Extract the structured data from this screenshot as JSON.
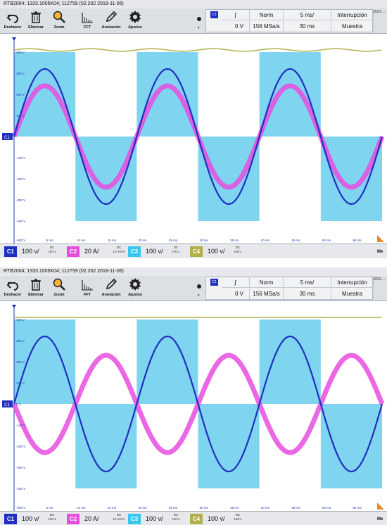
{
  "panels": [
    {
      "title": "RTB2004; 1333.1005K04; 112759 (02.202 2018-11-06)",
      "toolbar": [
        {
          "label": "Deshacer",
          "icon": "undo-icon"
        },
        {
          "label": "Eliminar",
          "icon": "trash-icon"
        },
        {
          "label": "Zoom",
          "icon": "zoom-icon"
        },
        {
          "label": "FFT",
          "icon": "fft-icon"
        },
        {
          "label": "Anotación",
          "icon": "pencil-icon"
        },
        {
          "label": "Ajustes",
          "icon": "gear-icon"
        }
      ],
      "settings": {
        "channel": "C1",
        "edge": "ʃ",
        "mode": "Norm",
        "time_scale": "5 ms/",
        "trigger_type": "Interrupción",
        "level": "0 V",
        "sample_rate": "156 MSa/s",
        "record_length": "30 ms",
        "acquisition": "Muestra",
        "date": "2023-..."
      },
      "channels": [
        {
          "id": "C1",
          "scale": "100 v/",
          "coupling": "DC",
          "probe": "100:1",
          "extra": "",
          "color": "#1f2fbf"
        },
        {
          "id": "C2",
          "scale": "20 A/",
          "coupling": "DC",
          "probe": "",
          "extra": "10 mV/A",
          "color": "#e84de0"
        },
        {
          "id": "C3",
          "scale": "100 v/",
          "coupling": "DC",
          "probe": "100:1",
          "extra": "",
          "color": "#39c6ee"
        },
        {
          "id": "C4",
          "scale": "100 v/",
          "coupling": "DC",
          "probe": "100:1",
          "extra": "",
          "color": "#b3b04a"
        }
      ],
      "me_label": "Me",
      "y_labels": [
        "400 V",
        "300 V",
        "200 V",
        "100 V",
        "-100 V",
        "-200 V",
        "-300 V",
        "-400 V",
        "-500 V"
      ],
      "x_labels": [
        "5 ms",
        "10 ms",
        "15 ms",
        "20 ms",
        "25 ms",
        "30 ms",
        "35 ms",
        "40 ms",
        "45 ms",
        "50 ms",
        "55 ms"
      ],
      "ch1_marker": "C1",
      "trace_colors": {
        "c1": "#1f2fbf",
        "c2": "#e84de0",
        "c3": "#7fd4f0",
        "c4": "#b3b04a"
      },
      "waveform": {
        "c3_high_v": 400,
        "c3_low_v": -400,
        "c1_amplitude_v": 320,
        "c2_amplitude_v": 240,
        "c2_phase": "in-phase",
        "c4_level_v": 410
      }
    },
    {
      "title": "RTB2004; 1333.1005K04; 112759 (02.202 2018-11-06)",
      "toolbar": [
        {
          "label": "Deshacer",
          "icon": "undo-icon"
        },
        {
          "label": "Eliminar",
          "icon": "trash-icon"
        },
        {
          "label": "Zoom",
          "icon": "zoom-icon"
        },
        {
          "label": "FFT",
          "icon": "fft-icon"
        },
        {
          "label": "Anotación",
          "icon": "pencil-icon"
        },
        {
          "label": "Ajustes",
          "icon": "gear-icon"
        }
      ],
      "settings": {
        "channel": "C1",
        "edge": "ʃ",
        "mode": "Norm",
        "time_scale": "5 ms/",
        "trigger_type": "Interrupción",
        "level": "0 V",
        "sample_rate": "156 MSa/s",
        "record_length": "30 ms",
        "acquisition": "Muestra",
        "date": "2023-..."
      },
      "channels": [
        {
          "id": "C1",
          "scale": "100 v/",
          "coupling": "DC",
          "probe": "100:1",
          "extra": "",
          "color": "#1f2fbf"
        },
        {
          "id": "C2",
          "scale": "20 A/",
          "coupling": "DC",
          "probe": "",
          "extra": "10 mV/A",
          "color": "#e84de0"
        },
        {
          "id": "C3",
          "scale": "100 v/",
          "coupling": "DC",
          "probe": "100:1",
          "extra": "",
          "color": "#39c6ee"
        },
        {
          "id": "C4",
          "scale": "100 v/",
          "coupling": "DC",
          "probe": "100:1",
          "extra": "",
          "color": "#b3b04a"
        }
      ],
      "me_label": "Me",
      "y_labels": [
        "400 V",
        "300 V",
        "200 V",
        "100 V",
        "0 V",
        "-100 V",
        "-200 V",
        "-300 V",
        "-400 V",
        "-500 V"
      ],
      "x_labels": [
        "5 ms",
        "10 ms",
        "15 ms",
        "20 ms",
        "25 ms",
        "30 ms",
        "35 ms",
        "40 ms",
        "45 ms",
        "50 ms",
        "55 ms"
      ],
      "ch1_marker": "C1",
      "trace_colors": {
        "c1": "#1f2fbf",
        "c2": "#e84de0",
        "c3": "#7fd4f0",
        "c4": "#b3b04a"
      },
      "waveform": {
        "c3_high_v": 400,
        "c3_low_v": -400,
        "c1_amplitude_v": 320,
        "c2_amplitude_v": 230,
        "c2_phase": "anti-phase",
        "c4_level_v": 410
      }
    }
  ]
}
